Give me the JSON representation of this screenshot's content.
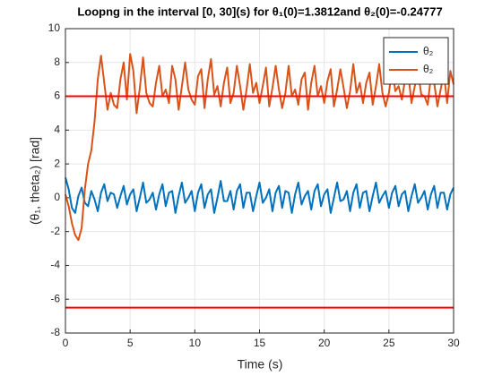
{
  "chart_data": {
    "type": "line",
    "title": "Loopng in the interval [0, 30](s) for θ₁(0)=1.3812and θ₂(0)=-0.24777",
    "x_label": "Time (s)",
    "y_label": "(θ₁, theta₂) [rad]",
    "x": [
      0,
      0.25,
      0.5,
      0.75,
      1,
      1.25,
      1.5,
      1.75,
      2,
      2.25,
      2.5,
      2.75,
      3,
      3.25,
      3.5,
      3.75,
      4,
      4.25,
      4.5,
      4.75,
      5,
      5.25,
      5.5,
      5.75,
      6,
      6.25,
      6.5,
      6.75,
      7,
      7.25,
      7.5,
      7.75,
      8,
      8.25,
      8.5,
      8.75,
      9,
      9.25,
      9.5,
      9.75,
      10,
      10.25,
      10.5,
      10.75,
      11,
      11.25,
      11.5,
      11.75,
      12,
      12.25,
      12.5,
      12.75,
      13,
      13.25,
      13.5,
      13.75,
      14,
      14.25,
      14.5,
      14.75,
      15,
      15.25,
      15.5,
      15.75,
      16,
      16.25,
      16.5,
      16.75,
      17,
      17.25,
      17.5,
      17.75,
      18,
      18.25,
      18.5,
      18.75,
      19,
      19.25,
      19.5,
      19.75,
      20,
      20.25,
      20.5,
      20.75,
      21,
      21.25,
      21.5,
      21.75,
      22,
      22.25,
      22.5,
      22.75,
      23,
      23.25,
      23.5,
      23.75,
      24,
      24.25,
      24.5,
      24.75,
      25,
      25.25,
      25.5,
      25.75,
      26,
      26.25,
      26.5,
      26.75,
      27,
      27.25,
      27.5,
      27.75,
      28,
      28.25,
      28.5,
      28.75,
      29,
      29.25,
      29.5,
      29.75,
      30
    ],
    "series": [
      {
        "name": "θ₂",
        "color": "#0072bd",
        "values": [
          1.2,
          0.5,
          -0.6,
          -0.9,
          0.1,
          0.6,
          -0.3,
          -0.5,
          0.4,
          -0.1,
          -0.8,
          0.3,
          0.8,
          -0.2,
          0.3,
          0.2,
          -0.6,
          0.1,
          0.7,
          -0.4,
          0.2,
          0.5,
          -0.8,
          0.0,
          0.9,
          -0.3,
          -0.1,
          0.3,
          -0.7,
          0.2,
          0.8,
          -0.5,
          0.3,
          0.4,
          -0.9,
          0.1,
          0.9,
          -0.3,
          0.0,
          0.4,
          -0.8,
          0.3,
          0.8,
          -0.6,
          0.2,
          0.5,
          -0.9,
          0.0,
          1.0,
          -0.2,
          -0.2,
          0.4,
          -0.7,
          0.4,
          0.8,
          -0.6,
          0.3,
          0.3,
          -0.8,
          0.1,
          0.9,
          -0.3,
          0.0,
          0.5,
          -0.8,
          0.3,
          0.7,
          -0.6,
          0.4,
          0.3,
          -0.9,
          0.2,
          0.9,
          -0.4,
          0.1,
          0.4,
          -0.7,
          0.4,
          0.8,
          -0.5,
          0.2,
          0.5,
          -0.9,
          0.0,
          0.9,
          -0.2,
          -0.1,
          0.4,
          -0.8,
          0.3,
          0.8,
          -0.6,
          0.3,
          0.4,
          -0.8,
          0.1,
          0.9,
          -0.3,
          0.1,
          0.4,
          -0.6,
          0.3,
          0.7,
          -0.5,
          0.2,
          0.4,
          -0.8,
          0.1,
          0.8,
          -0.3,
          0.0,
          0.4,
          -0.7,
          0.2,
          0.7,
          -0.6,
          0.3,
          0.3,
          -0.7,
          0.2,
          0.6
        ]
      },
      {
        "name": "θ₂",
        "color": "#d95319",
        "values": [
          0.2,
          -0.5,
          -1.5,
          -2.2,
          -2.5,
          -1.8,
          0.5,
          2.0,
          2.8,
          4.5,
          7.0,
          8.4,
          6.8,
          5.2,
          6.2,
          5.5,
          5.3,
          7.0,
          8.0,
          5.8,
          8.5,
          7.5,
          5.0,
          6.5,
          8.3,
          6.2,
          5.6,
          5.4,
          6.8,
          7.8,
          6.0,
          6.4,
          5.6,
          7.8,
          7.0,
          5.2,
          6.6,
          8.0,
          6.4,
          5.8,
          5.5,
          7.2,
          7.6,
          5.3,
          7.0,
          8.2,
          6.1,
          6.6,
          5.4,
          6.8,
          7.7,
          5.6,
          6.2,
          7.8,
          6.6,
          5.2,
          6.4,
          7.9,
          6.2,
          6.8,
          5.6,
          6.6,
          7.7,
          5.4,
          6.5,
          7.8,
          6.4,
          5.3,
          6.2,
          7.8,
          6.0,
          6.4,
          5.5,
          7.0,
          7.4,
          5.2,
          6.8,
          7.8,
          6.0,
          6.6,
          5.6,
          6.9,
          7.6,
          5.4,
          6.4,
          7.6,
          6.5,
          5.3,
          6.3,
          7.9,
          6.2,
          6.8,
          5.6,
          6.8,
          7.4,
          5.5,
          6.6,
          7.9,
          6.2,
          5.4,
          6.2,
          7.6,
          6.3,
          6.6,
          5.8,
          7.0,
          7.3,
          5.6,
          6.6,
          7.5,
          6.1,
          6.0,
          5.5,
          7.2,
          6.8,
          5.4,
          6.4,
          7.4,
          5.6,
          7.5,
          6.7
        ]
      }
    ],
    "reference_lines": [
      {
        "value": 6,
        "color": "#ff0000"
      },
      {
        "value": -6.5,
        "color": "#ff0000"
      }
    ],
    "xlim": [
      0,
      30
    ],
    "xticks": [
      0,
      5,
      10,
      15,
      20,
      25,
      30
    ],
    "ylim": [
      -8,
      10
    ],
    "yticks": [
      -8,
      -6,
      -4,
      -2,
      0,
      2,
      4,
      6,
      8,
      10
    ],
    "grid": true,
    "legend": "northeast"
  }
}
